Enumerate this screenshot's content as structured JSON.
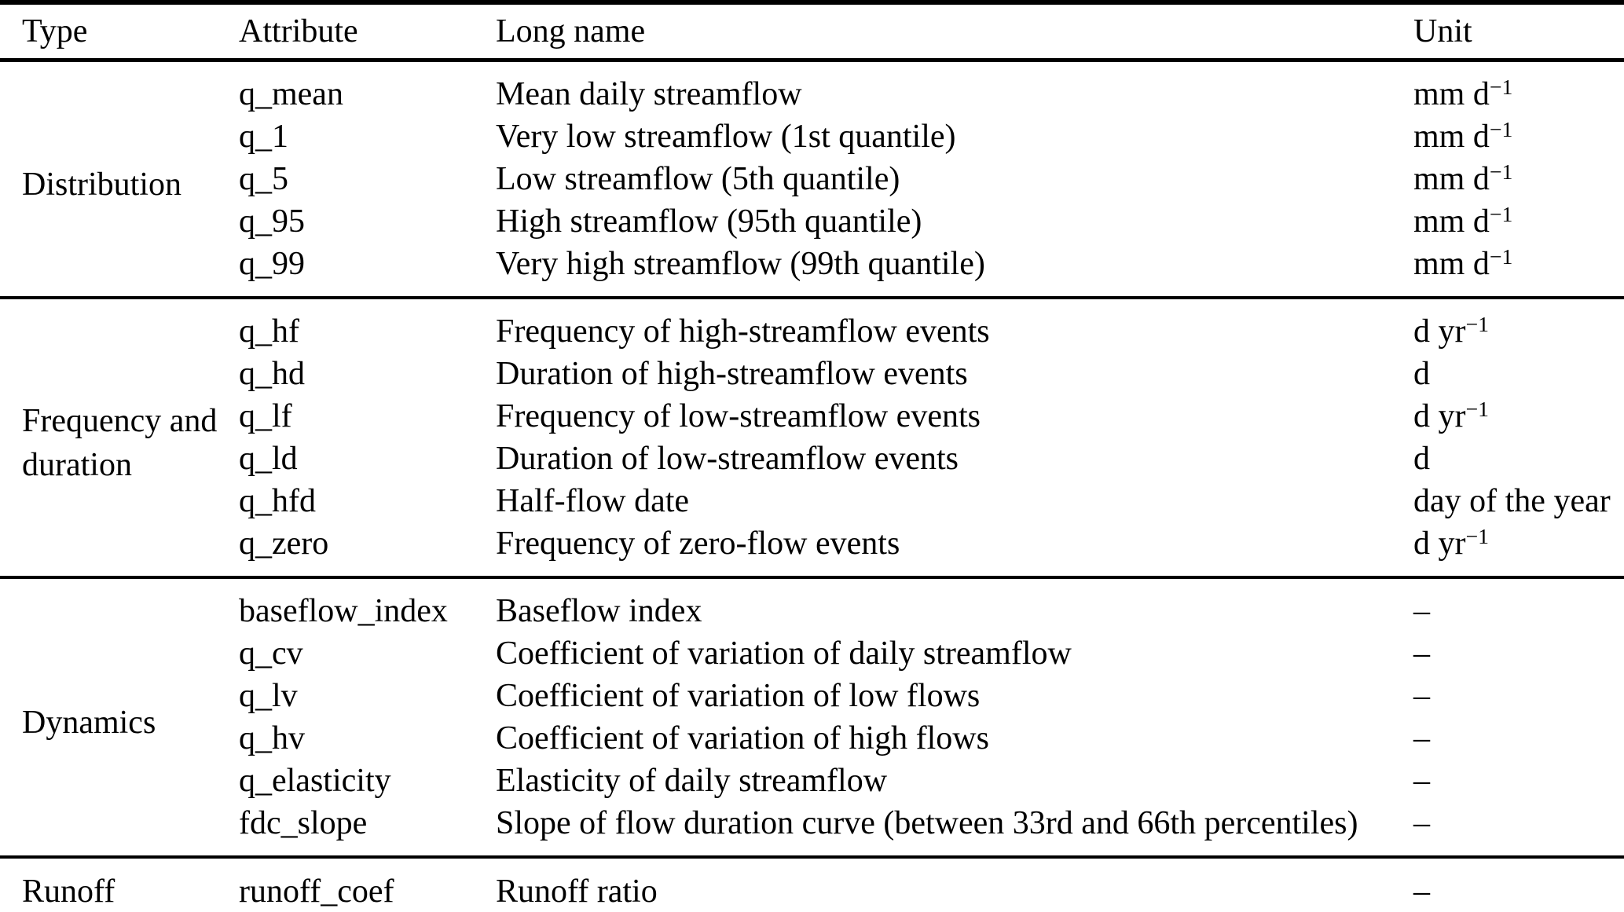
{
  "table": {
    "columns": {
      "type": "Type",
      "attribute": "Attribute",
      "long_name": "Long name",
      "unit": "Unit"
    },
    "groups": [
      {
        "type": "Distribution",
        "rows": [
          {
            "attribute": "q_mean",
            "long_name": "Mean daily streamflow",
            "unit_base": "mm d",
            "unit_sup": "−1"
          },
          {
            "attribute": "q_1",
            "long_name": "Very low streamflow (1st quantile)",
            "unit_base": "mm d",
            "unit_sup": "−1"
          },
          {
            "attribute": "q_5",
            "long_name": "Low streamflow (5th quantile)",
            "unit_base": "mm d",
            "unit_sup": "−1"
          },
          {
            "attribute": "q_95",
            "long_name": "High streamflow (95th quantile)",
            "unit_base": "mm d",
            "unit_sup": "−1"
          },
          {
            "attribute": "q_99",
            "long_name": "Very high streamflow (99th quantile)",
            "unit_base": "mm d",
            "unit_sup": "−1"
          }
        ]
      },
      {
        "type": "Frequency and duration",
        "rows": [
          {
            "attribute": "q_hf",
            "long_name": "Frequency of high-streamflow events",
            "unit_base": "d yr",
            "unit_sup": "−1"
          },
          {
            "attribute": "q_hd",
            "long_name": "Duration of high-streamflow events",
            "unit_base": "d",
            "unit_sup": ""
          },
          {
            "attribute": "q_lf",
            "long_name": "Frequency of low-streamflow events",
            "unit_base": "d yr",
            "unit_sup": "−1"
          },
          {
            "attribute": "q_ld",
            "long_name": "Duration of low-streamflow events",
            "unit_base": "d",
            "unit_sup": ""
          },
          {
            "attribute": "q_hfd",
            "long_name": "Half-flow date",
            "unit_base": "day of the year",
            "unit_sup": ""
          },
          {
            "attribute": "q_zero",
            "long_name": "Frequency of zero-flow events",
            "unit_base": "d yr",
            "unit_sup": "−1"
          }
        ]
      },
      {
        "type": "Dynamics",
        "rows": [
          {
            "attribute": "baseflow_index",
            "long_name": "Baseflow index",
            "unit_base": "–",
            "unit_sup": ""
          },
          {
            "attribute": "q_cv",
            "long_name": "Coefficient of variation of daily streamflow",
            "unit_base": "–",
            "unit_sup": ""
          },
          {
            "attribute": "q_lv",
            "long_name": "Coefficient of variation of low flows",
            "unit_base": "–",
            "unit_sup": ""
          },
          {
            "attribute": "q_hv",
            "long_name": "Coefficient of variation of high flows",
            "unit_base": "–",
            "unit_sup": ""
          },
          {
            "attribute": "q_elasticity",
            "long_name": "Elasticity of daily streamflow",
            "unit_base": "–",
            "unit_sup": ""
          },
          {
            "attribute": "fdc_slope",
            "long_name": "Slope of flow duration curve (between 33rd and 66th percentiles)",
            "unit_base": "–",
            "unit_sup": ""
          }
        ]
      },
      {
        "type": "Runoff",
        "rows": [
          {
            "attribute": "runoff_coef",
            "long_name": "Runoff ratio",
            "unit_base": "–",
            "unit_sup": ""
          }
        ]
      }
    ]
  }
}
